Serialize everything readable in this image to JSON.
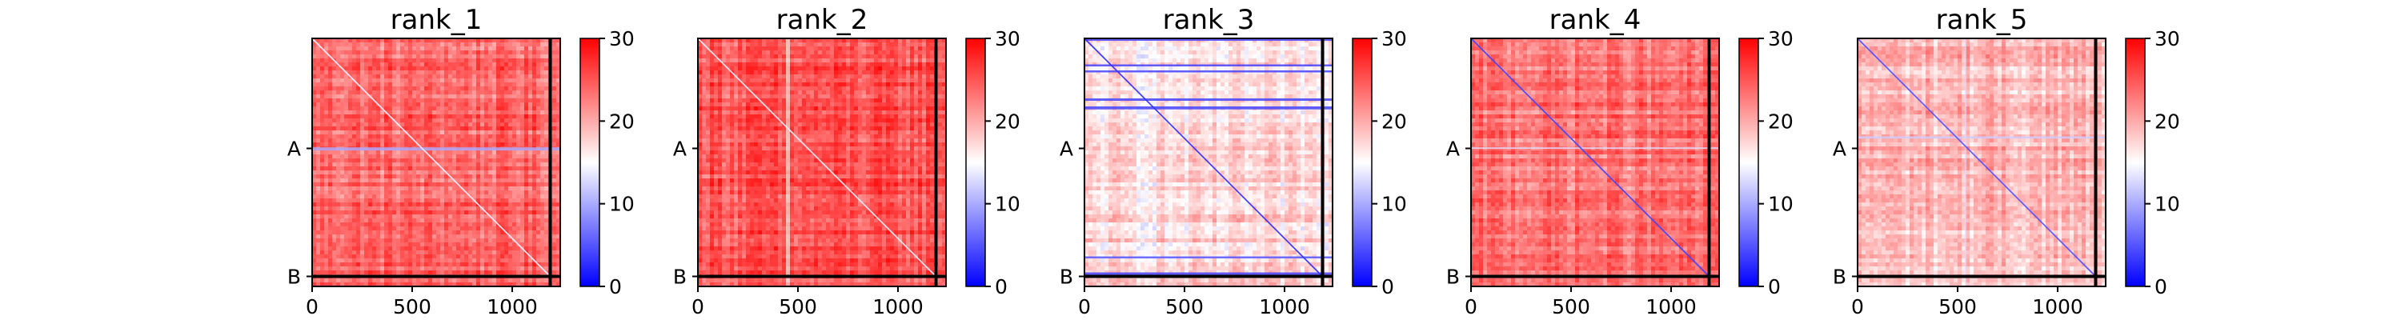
{
  "chart_data": [
    {
      "type": "heatmap",
      "title": "rank_1",
      "x_ticks": [
        0,
        500,
        1000
      ],
      "xlim": [
        0,
        1240
      ],
      "y_tick_labels": [
        "A",
        "B"
      ],
      "y_tick_values": [
        550,
        1190
      ],
      "boundary_index": 1190,
      "colorbar": {
        "range": [
          0,
          30
        ],
        "ticks": [
          0,
          10,
          20,
          30
        ],
        "colormap": "bwr",
        "colors": [
          "#0000ff",
          "#ffffff",
          "#ff0000"
        ]
      },
      "typical_value": 24,
      "diagonal_value": 14,
      "low_rows": [
        {
          "from": 545,
          "to": 560,
          "value": 10
        }
      ],
      "low_cols": []
    },
    {
      "type": "heatmap",
      "title": "rank_2",
      "x_ticks": [
        0,
        500,
        1000
      ],
      "xlim": [
        0,
        1240
      ],
      "y_tick_labels": [
        "A",
        "B"
      ],
      "y_tick_values": [
        550,
        1190
      ],
      "boundary_index": 1190,
      "colorbar": {
        "range": [
          0,
          30
        ],
        "ticks": [
          0,
          10,
          20,
          30
        ],
        "colormap": "bwr",
        "colors": [
          "#0000ff",
          "#ffffff",
          "#ff0000"
        ]
      },
      "typical_value": 25,
      "diagonal_value": 14,
      "low_rows": [],
      "low_cols": [
        {
          "from": 440,
          "to": 460,
          "value": 15
        }
      ]
    },
    {
      "type": "heatmap",
      "title": "rank_3",
      "x_ticks": [
        0,
        500,
        1000
      ],
      "xlim": [
        0,
        1240
      ],
      "y_tick_labels": [
        "A",
        "B"
      ],
      "y_tick_values": [
        550,
        1190
      ],
      "boundary_index": 1190,
      "colorbar": {
        "range": [
          0,
          30
        ],
        "ticks": [
          0,
          10,
          20,
          30
        ],
        "colormap": "bwr",
        "colors": [
          "#0000ff",
          "#ffffff",
          "#ff0000"
        ]
      },
      "typical_value": 17,
      "diagonal_value": 3,
      "low_rows": [
        {
          "from": 0,
          "to": 12,
          "value": 4
        },
        {
          "from": 130,
          "to": 140,
          "value": 4
        },
        {
          "from": 160,
          "to": 170,
          "value": 4
        },
        {
          "from": 300,
          "to": 312,
          "value": 4
        },
        {
          "from": 340,
          "to": 355,
          "value": 4
        },
        {
          "from": 1090,
          "to": 1100,
          "value": 5
        },
        {
          "from": 1170,
          "to": 1186,
          "value": 4
        }
      ],
      "low_cols": []
    },
    {
      "type": "heatmap",
      "title": "rank_4",
      "x_ticks": [
        0,
        500,
        1000
      ],
      "xlim": [
        0,
        1240
      ],
      "y_tick_labels": [
        "A",
        "B"
      ],
      "y_tick_values": [
        550,
        1190
      ],
      "boundary_index": 1190,
      "colorbar": {
        "range": [
          0,
          30
        ],
        "ticks": [
          0,
          10,
          20,
          30
        ],
        "colormap": "bwr",
        "colors": [
          "#0000ff",
          "#ffffff",
          "#ff0000"
        ]
      },
      "typical_value": 23,
      "diagonal_value": 4,
      "low_rows": [
        {
          "from": 545,
          "to": 552,
          "value": 13
        }
      ],
      "low_cols": []
    },
    {
      "type": "heatmap",
      "title": "rank_5",
      "x_ticks": [
        0,
        500,
        1000
      ],
      "xlim": [
        0,
        1240
      ],
      "y_tick_labels": [
        "A",
        "B"
      ],
      "y_tick_values": [
        550,
        1190
      ],
      "boundary_index": 1190,
      "colorbar": {
        "range": [
          0,
          30
        ],
        "ticks": [
          0,
          10,
          20,
          30
        ],
        "colormap": "bwr",
        "colors": [
          "#0000ff",
          "#ffffff",
          "#ff0000"
        ]
      },
      "typical_value": 19,
      "diagonal_value": 5,
      "low_rows": [
        {
          "from": 490,
          "to": 500,
          "value": 12
        }
      ],
      "low_cols": [
        {
          "from": 535,
          "to": 545,
          "value": 13
        }
      ]
    }
  ]
}
